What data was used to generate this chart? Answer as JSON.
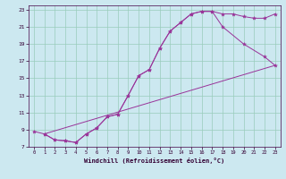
{
  "xlabel": "Windchill (Refroidissement éolien,°C)",
  "bg_color": "#cce8f0",
  "line_color": "#993399",
  "grid_color": "#99ccbb",
  "xlim": [
    -0.5,
    23.5
  ],
  "ylim": [
    7,
    23.5
  ],
  "xticks": [
    0,
    1,
    2,
    3,
    4,
    5,
    6,
    7,
    8,
    9,
    10,
    11,
    12,
    13,
    14,
    15,
    16,
    17,
    18,
    19,
    20,
    21,
    22,
    23
  ],
  "yticks": [
    7,
    9,
    11,
    13,
    15,
    17,
    19,
    21,
    23
  ],
  "line1_x": [
    0,
    1,
    2,
    3,
    4,
    5,
    6,
    7,
    8,
    9,
    10,
    11,
    12,
    13,
    14,
    15,
    16,
    17,
    18,
    19,
    20,
    21,
    22,
    23
  ],
  "line1_y": [
    8.8,
    8.5,
    7.8,
    7.7,
    7.5,
    8.5,
    9.2,
    10.5,
    10.8,
    13.0,
    15.3,
    16.0,
    18.5,
    20.5,
    21.5,
    22.5,
    22.8,
    22.8,
    22.5,
    22.5,
    22.2,
    22.0,
    22.0,
    22.5
  ],
  "line2_x": [
    1,
    2,
    3,
    4,
    5,
    6,
    7,
    8,
    9,
    10,
    11,
    12,
    13,
    14,
    15,
    16,
    17,
    18,
    20,
    22,
    23
  ],
  "line2_y": [
    8.5,
    7.8,
    7.7,
    7.5,
    8.5,
    9.2,
    10.5,
    10.8,
    13.0,
    15.3,
    16.0,
    18.5,
    20.5,
    21.5,
    22.5,
    22.8,
    22.8,
    21.0,
    19.0,
    17.5,
    16.5
  ],
  "line3_x": [
    1,
    23
  ],
  "line3_y": [
    8.5,
    16.5
  ]
}
